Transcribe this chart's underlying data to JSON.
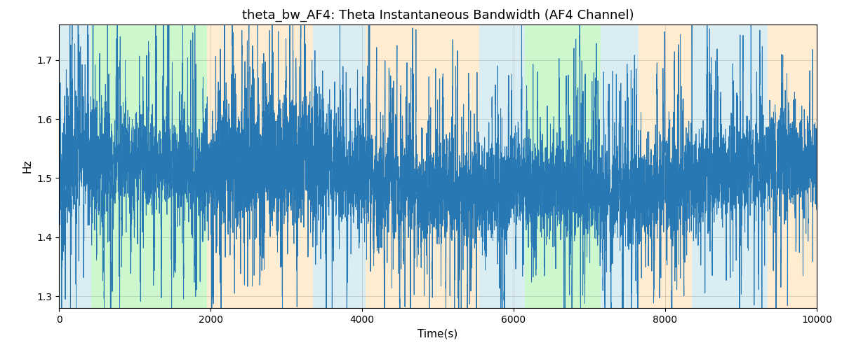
{
  "title": "theta_bw_AF4: Theta Instantaneous Bandwidth (AF4 Channel)",
  "xlabel": "Time(s)",
  "ylabel": "Hz",
  "xlim": [
    0,
    10000
  ],
  "ylim": [
    1.28,
    1.76
  ],
  "yticks": [
    1.3,
    1.4,
    1.5,
    1.6,
    1.7
  ],
  "xticks": [
    0,
    2000,
    4000,
    6000,
    8000,
    10000
  ],
  "line_color": "#2878b4",
  "line_width": 0.7,
  "background_color": "#ffffff",
  "regions": [
    {
      "xmin": 0,
      "xmax": 430,
      "color": "#add8e6",
      "alpha": 0.45
    },
    {
      "xmin": 430,
      "xmax": 1950,
      "color": "#90ee90",
      "alpha": 0.45
    },
    {
      "xmin": 1950,
      "xmax": 3350,
      "color": "#ffd59b",
      "alpha": 0.45
    },
    {
      "xmin": 3350,
      "xmax": 4050,
      "color": "#add8e6",
      "alpha": 0.45
    },
    {
      "xmin": 4050,
      "xmax": 5550,
      "color": "#ffd59b",
      "alpha": 0.45
    },
    {
      "xmin": 5550,
      "xmax": 6150,
      "color": "#add8e6",
      "alpha": 0.45
    },
    {
      "xmin": 6150,
      "xmax": 7150,
      "color": "#90ee90",
      "alpha": 0.45
    },
    {
      "xmin": 7150,
      "xmax": 7650,
      "color": "#add8e6",
      "alpha": 0.45
    },
    {
      "xmin": 7650,
      "xmax": 8350,
      "color": "#ffd59b",
      "alpha": 0.45
    },
    {
      "xmin": 8350,
      "xmax": 9350,
      "color": "#add8e6",
      "alpha": 0.45
    },
    {
      "xmin": 9350,
      "xmax": 10000,
      "color": "#ffd59b",
      "alpha": 0.45
    }
  ],
  "seed": 42,
  "n_points": 10000,
  "title_fontsize": 13,
  "label_fontsize": 11
}
